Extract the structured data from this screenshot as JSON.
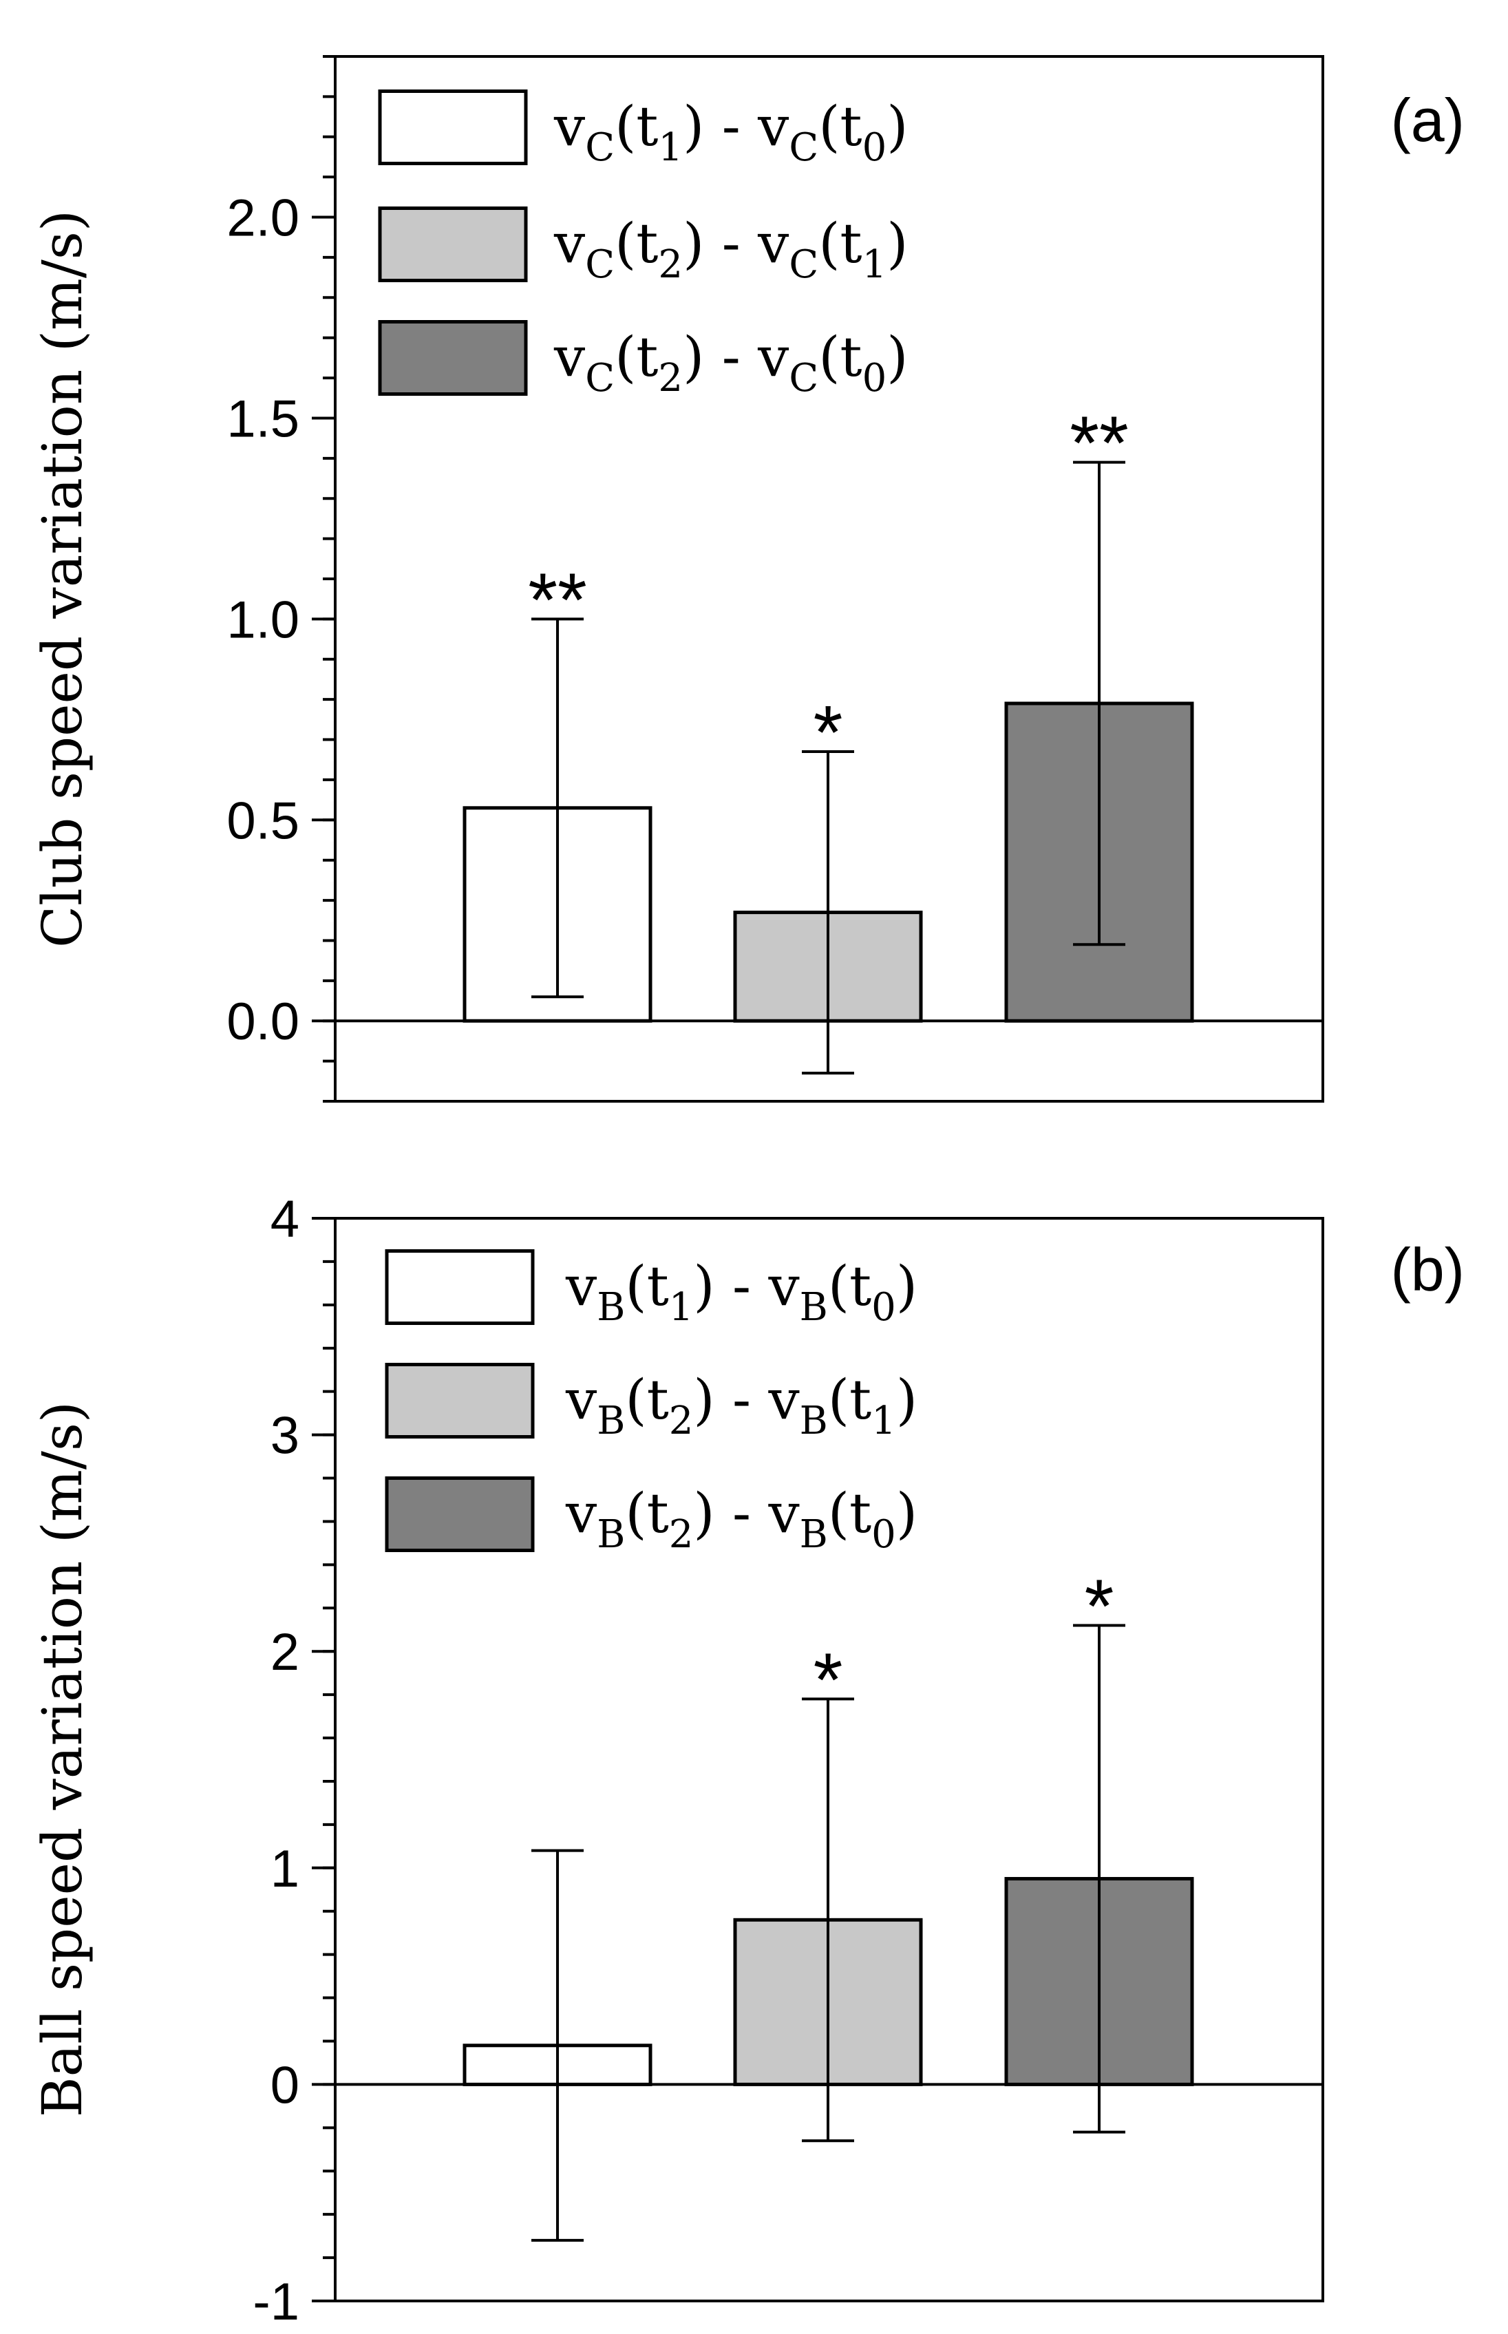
{
  "chart_data": [
    {
      "type": "bar",
      "panel_label": "(a)",
      "ylabel": "Club speed variation (m/s)",
      "ylim": [
        -0.2,
        2.4
      ],
      "yticks": [
        0.0,
        0.5,
        1.0,
        1.5,
        2.0
      ],
      "ytick_labels": [
        "0.0",
        "0.5",
        "1.0",
        "1.5",
        "2.0"
      ],
      "minor_step": 0.1,
      "zero_line": true,
      "legend_position": "top-left",
      "series": [
        {
          "name": "vC(t1) - vC(t0)",
          "legend": {
            "v": "v",
            "s1": "C",
            "a": "(t",
            "s2": "1",
            "b": ") - v",
            "s3": "C",
            "c": "(t",
            "s4": "0",
            "d": ")"
          },
          "value": 0.53,
          "err_low": 0.06,
          "err_high": 1.0,
          "significance": "**",
          "color": "#ffffff"
        },
        {
          "name": "vC(t2) - vC(t1)",
          "legend": {
            "v": "v",
            "s1": "C",
            "a": "(t",
            "s2": "2",
            "b": ") - v",
            "s3": "C",
            "c": "(t",
            "s4": "1",
            "d": ")"
          },
          "value": 0.27,
          "err_low": -0.13,
          "err_high": 0.67,
          "significance": "*",
          "color": "#c8c8c8"
        },
        {
          "name": "vC(t2) - vC(t0)",
          "legend": {
            "v": "v",
            "s1": "C",
            "a": "(t",
            "s2": "2",
            "b": ") - v",
            "s3": "C",
            "c": "(t",
            "s4": "0",
            "d": ")"
          },
          "value": 0.79,
          "err_low": 0.19,
          "err_high": 1.39,
          "significance": "**",
          "color": "#808080"
        }
      ]
    },
    {
      "type": "bar",
      "panel_label": "(b)",
      "ylabel": "Ball speed variation (m/s)",
      "ylim": [
        -1,
        4
      ],
      "yticks": [
        -1,
        0,
        1,
        2,
        3,
        4
      ],
      "ytick_labels": [
        "-1",
        "0",
        "1",
        "2",
        "3",
        "4"
      ],
      "minor_step": 0.2,
      "zero_line": true,
      "legend_position": "top-left",
      "series": [
        {
          "name": "vB(t1) - vB(t0)",
          "legend": {
            "v": "v",
            "s1": "B",
            "a": "(t",
            "s2": "1",
            "b": ") - v",
            "s3": "B",
            "c": "(t",
            "s4": "0",
            "d": ")"
          },
          "value": 0.18,
          "err_low": -0.72,
          "err_high": 1.08,
          "significance": "",
          "color": "#ffffff"
        },
        {
          "name": "vB(t2) - vB(t1)",
          "legend": {
            "v": "v",
            "s1": "B",
            "a": "(t",
            "s2": "2",
            "b": ") - v",
            "s3": "B",
            "c": "(t",
            "s4": "1",
            "d": ")"
          },
          "value": 0.76,
          "err_low": -0.26,
          "err_high": 1.78,
          "significance": "*",
          "color": "#c8c8c8"
        },
        {
          "name": "vB(t2) - vB(t0)",
          "legend": {
            "v": "v",
            "s1": "B",
            "a": "(t",
            "s2": "2",
            "b": ") - v",
            "s3": "B",
            "c": "(t",
            "s4": "0",
            "d": ")"
          },
          "value": 0.95,
          "err_low": -0.22,
          "err_high": 2.12,
          "significance": "*",
          "color": "#808080"
        }
      ]
    }
  ]
}
